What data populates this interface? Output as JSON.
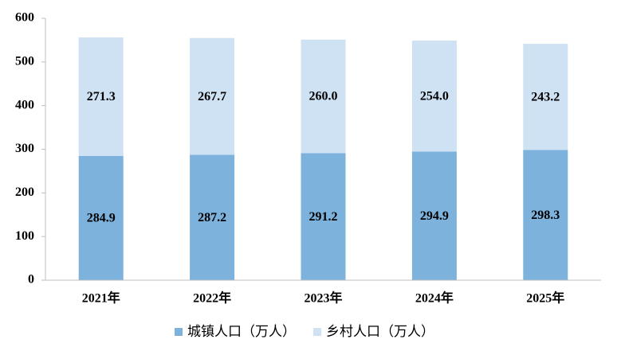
{
  "chart_data": {
    "type": "stacked-bar",
    "categories": [
      "2021年",
      "2022年",
      "2023年",
      "2024年",
      "2025年"
    ],
    "series": [
      {
        "name": "城镇人口（万人）",
        "color": "#7db2dc",
        "values": [
          284.9,
          287.2,
          291.2,
          294.9,
          298.3
        ],
        "value_labels": [
          "284.9",
          "287.2",
          "291.2",
          "294.9",
          "298.3"
        ]
      },
      {
        "name": "乡村人口（万人）",
        "color": "#cfe2f4",
        "values": [
          271.3,
          267.7,
          260,
          254,
          243.2
        ],
        "value_labels": [
          "271.3",
          "267.7",
          "260.0",
          "254.0",
          "243.2"
        ]
      }
    ],
    "ylim": [
      0,
      600
    ],
    "yticks": [
      0,
      100,
      200,
      300,
      400,
      500,
      600
    ],
    "grid": false,
    "legend": "bottom"
  }
}
